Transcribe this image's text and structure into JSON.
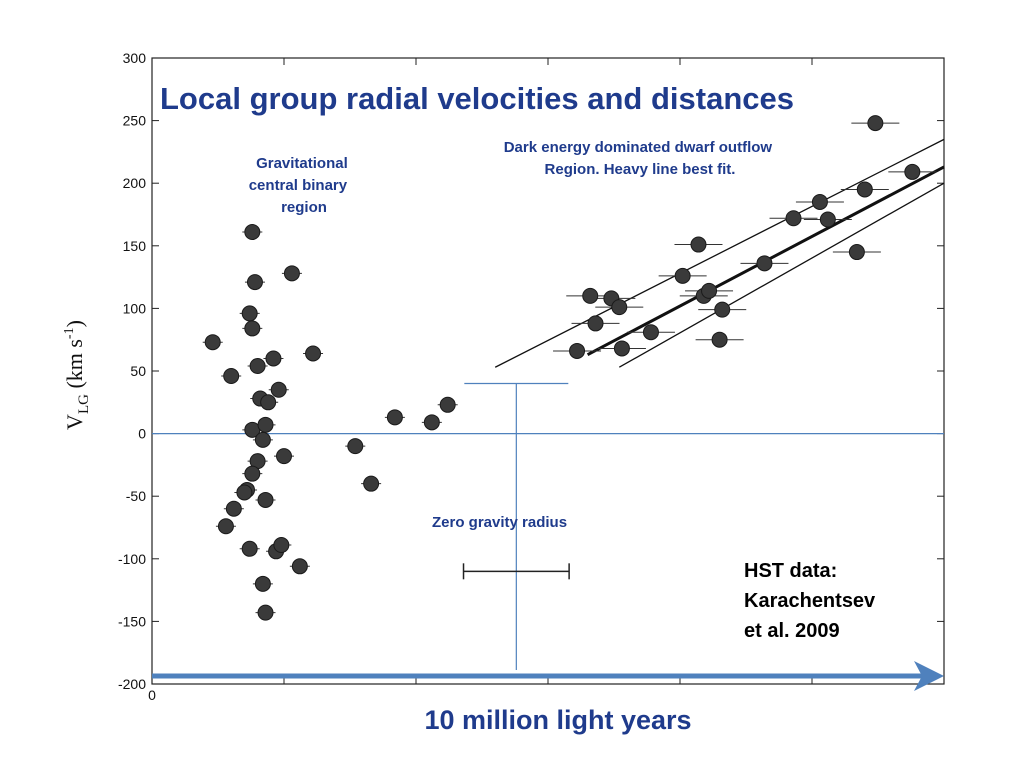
{
  "chart_data": {
    "type": "scatter",
    "title": "Local group radial velocities and distances",
    "ylabel": {
      "base": "V",
      "sub": "LG",
      "unit_open": " (km s",
      "sup": "-1",
      "unit_close": ")"
    },
    "xlabel": "10 million light years",
    "ylim": [
      -200,
      300
    ],
    "xlim": [
      0,
      3.0
    ],
    "y_ticks": [
      300,
      250,
      200,
      150,
      100,
      50,
      0,
      -50,
      -100,
      -150,
      -200
    ],
    "x_ticks": [
      0,
      0.5,
      1.0,
      1.5,
      2.0,
      2.5,
      3.0
    ],
    "x_tick_labels": [
      "0"
    ],
    "grid": false,
    "annotations": {
      "binary_region": [
        "Gravitational",
        "central binary",
        "region"
      ],
      "outflow_region": [
        "Dark energy dominated  dwarf outflow",
        "Region. Heavy line best  fit."
      ],
      "zero_gravity": "Zero gravity radius",
      "hst_data": [
        "HST data:",
        "Karachentsev",
        "et al. 2009"
      ]
    },
    "points": [
      {
        "x": 0.23,
        "y": 73
      },
      {
        "x": 0.3,
        "y": 46
      },
      {
        "x": 0.37,
        "y": 96
      },
      {
        "x": 0.38,
        "y": 84
      },
      {
        "x": 0.38,
        "y": 161
      },
      {
        "x": 0.39,
        "y": 121
      },
      {
        "x": 0.4,
        "y": 54
      },
      {
        "x": 0.41,
        "y": 28
      },
      {
        "x": 0.44,
        "y": 25
      },
      {
        "x": 0.46,
        "y": 60
      },
      {
        "x": 0.48,
        "y": 35
      },
      {
        "x": 0.53,
        "y": 128
      },
      {
        "x": 0.61,
        "y": 64
      },
      {
        "x": 0.38,
        "y": 3
      },
      {
        "x": 0.43,
        "y": 7
      },
      {
        "x": 0.42,
        "y": -5
      },
      {
        "x": 0.5,
        "y": -18
      },
      {
        "x": 0.4,
        "y": -22
      },
      {
        "x": 0.38,
        "y": -32
      },
      {
        "x": 0.36,
        "y": -45
      },
      {
        "x": 0.35,
        "y": -47
      },
      {
        "x": 0.31,
        "y": -60
      },
      {
        "x": 0.28,
        "y": -74
      },
      {
        "x": 0.43,
        "y": -53
      },
      {
        "x": 0.37,
        "y": -92
      },
      {
        "x": 0.47,
        "y": -94
      },
      {
        "x": 0.49,
        "y": -89
      },
      {
        "x": 0.56,
        "y": -106
      },
      {
        "x": 0.42,
        "y": -120
      },
      {
        "x": 0.43,
        "y": -143
      },
      {
        "x": 0.77,
        "y": -10
      },
      {
        "x": 0.83,
        "y": -40
      },
      {
        "x": 0.92,
        "y": 13
      },
      {
        "x": 1.06,
        "y": 9
      },
      {
        "x": 1.12,
        "y": 23
      },
      {
        "x": 1.61,
        "y": 66
      },
      {
        "x": 1.66,
        "y": 110
      },
      {
        "x": 1.68,
        "y": 88
      },
      {
        "x": 1.74,
        "y": 108
      },
      {
        "x": 1.77,
        "y": 101
      },
      {
        "x": 1.78,
        "y": 68
      },
      {
        "x": 1.89,
        "y": 81
      },
      {
        "x": 2.01,
        "y": 126
      },
      {
        "x": 2.07,
        "y": 151
      },
      {
        "x": 2.09,
        "y": 110
      },
      {
        "x": 2.11,
        "y": 114
      },
      {
        "x": 2.15,
        "y": 75
      },
      {
        "x": 2.16,
        "y": 99
      },
      {
        "x": 2.32,
        "y": 136
      },
      {
        "x": 2.43,
        "y": 172
      },
      {
        "x": 2.53,
        "y": 185
      },
      {
        "x": 2.56,
        "y": 171
      },
      {
        "x": 2.67,
        "y": 145
      },
      {
        "x": 2.7,
        "y": 195
      },
      {
        "x": 2.74,
        "y": 248
      },
      {
        "x": 2.88,
        "y": 209
      }
    ],
    "fit_lines": [
      {
        "style": "heavy",
        "x": [
          1.65,
          3.0
        ],
        "y": [
          63,
          213
        ]
      },
      {
        "style": "light",
        "x": [
          1.3,
          3.0
        ],
        "y": [
          53,
          235
        ]
      },
      {
        "style": "light",
        "x": [
          1.77,
          3.0
        ],
        "y": [
          53,
          200
        ]
      }
    ],
    "zero_line_y": 0,
    "zero_gravity_marker": {
      "x": 1.38,
      "y_top": 40,
      "x_span": [
        1.18,
        1.58
      ],
      "bar_y": -110
    }
  }
}
